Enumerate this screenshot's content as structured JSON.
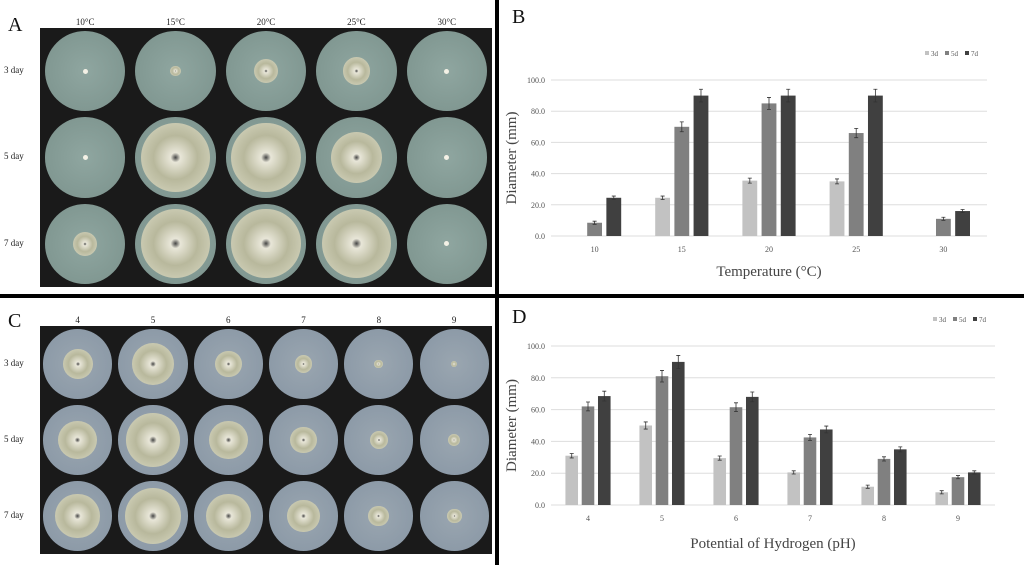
{
  "panels": {
    "A": {
      "label": "A",
      "columns": [
        "10°C",
        "15°C",
        "20°C",
        "25°C",
        "30°C"
      ],
      "rows": [
        "3 day",
        "5 day",
        "7 day"
      ]
    },
    "C": {
      "label": "C",
      "columns": [
        "4",
        "5",
        "6",
        "7",
        "8",
        "9"
      ],
      "rows": [
        "3 day",
        "5 day",
        "7 day"
      ]
    },
    "B": {
      "label": "B"
    },
    "D": {
      "label": "D"
    }
  },
  "colors": {
    "3d": "#c2c2c2",
    "5d": "#808080",
    "7d": "#404040"
  },
  "chart_data": [
    {
      "type": "bar",
      "panel": "B",
      "categories": [
        "10",
        "15",
        "20",
        "25",
        "30"
      ],
      "xlabel": "Temperature (°C)",
      "ylabel": "Diameter (mm)",
      "ylim": [
        0,
        100
      ],
      "yticks": [
        "0.0",
        "20.0",
        "40.0",
        "60.0",
        "80.0",
        "100.0"
      ],
      "grid": true,
      "legend": "top-right",
      "error_bars": true,
      "series": [
        {
          "name": "3d",
          "values": [
            0,
            24.5,
            35.5,
            35,
            0
          ]
        },
        {
          "name": "5d",
          "values": [
            8.5,
            70,
            85,
            66,
            11
          ]
        },
        {
          "name": "7d",
          "values": [
            24.5,
            90,
            90,
            90,
            16
          ]
        }
      ]
    },
    {
      "type": "bar",
      "panel": "D",
      "categories": [
        "4",
        "5",
        "6",
        "7",
        "8",
        "9"
      ],
      "xlabel": "Potential of Hydrogen (pH)",
      "ylabel": "Diameter (mm)",
      "ylim": [
        0,
        100
      ],
      "yticks": [
        "0.0",
        "20.0",
        "40.0",
        "60.0",
        "80.0",
        "100.0"
      ],
      "grid": true,
      "legend": "top-right",
      "error_bars": true,
      "series": [
        {
          "name": "3d",
          "values": [
            31,
            50,
            29.5,
            20.5,
            11.5,
            8
          ]
        },
        {
          "name": "5d",
          "values": [
            62,
            81,
            61.5,
            42.5,
            29,
            17.5
          ]
        },
        {
          "name": "7d",
          "values": [
            68.5,
            90,
            68,
            47.5,
            35,
            20.5
          ]
        }
      ]
    }
  ]
}
